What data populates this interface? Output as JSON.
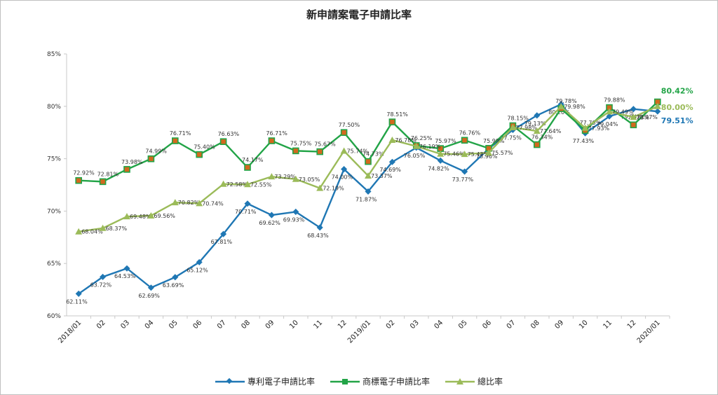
{
  "chart_data": {
    "type": "line",
    "title": "新申請案電子申請比率",
    "categories": [
      "2018/01",
      "02",
      "03",
      "04",
      "05",
      "06",
      "07",
      "08",
      "09",
      "10",
      "11",
      "12",
      "2019/01",
      "02",
      "03",
      "04",
      "05",
      "06",
      "07",
      "08",
      "09",
      "10",
      "11",
      "12",
      "2020/01"
    ],
    "ylim": [
      60,
      85
    ],
    "yticks": [
      "60%",
      "65%",
      "70%",
      "75%",
      "80%",
      "85%"
    ],
    "series": [
      {
        "name": "專利電子申請比率",
        "color": "#1f77b4",
        "marker": "diamond",
        "values": [
          62.11,
          63.72,
          64.53,
          62.69,
          63.69,
          65.12,
          67.81,
          70.71,
          69.62,
          69.93,
          68.43,
          74.0,
          71.87,
          74.69,
          76.05,
          74.82,
          73.77,
          75.96,
          77.75,
          79.13,
          80.2,
          77.43,
          79.04,
          79.74,
          79.51
        ],
        "labels": [
          "62.11%",
          "63.72%",
          "64.53%",
          "62.69%",
          "63.69%",
          "65.12%",
          "67.81%",
          "70.71%",
          "69.62%",
          "69.93%",
          "68.43%",
          "74.00%",
          "71.87%",
          "74.69%",
          "76.05%",
          "74.82%",
          "73.77%",
          "75.96%",
          "77.75%",
          "79.13%",
          "80.20%",
          "77.43%",
          "79.04%",
          "79.74%",
          "79.51%"
        ]
      },
      {
        "name": "商標電子申請比率",
        "color": "#22a447",
        "marker": "square",
        "values": [
          72.92,
          72.81,
          73.98,
          74.99,
          76.71,
          75.4,
          76.63,
          74.17,
          76.71,
          75.75,
          75.67,
          77.5,
          74.73,
          78.51,
          76.25,
          75.97,
          76.76,
          75.99,
          78.15,
          76.34,
          79.78,
          77.7,
          79.88,
          78.23,
          80.42
        ],
        "labels": [
          "72.92%",
          "72.81%",
          "73.98%",
          "74.99%",
          "76.71%",
          "75.40%",
          "76.63%",
          "74.17%",
          "76.71%",
          "75.75%",
          "75.67%",
          "77.50%",
          "74.73%",
          "78.51%",
          "76.25%",
          "75.97%",
          "76.76%",
          "75.99%",
          "78.15%",
          "76.34%",
          "79.78%",
          "77.70%",
          "79.88%",
          "78.23%",
          "80.42%"
        ]
      },
      {
        "name": "總比率",
        "color": "#9bbb59",
        "marker": "triangle",
        "values": [
          68.04,
          68.37,
          69.48,
          69.56,
          70.82,
          70.74,
          72.58,
          72.55,
          73.29,
          73.05,
          72.19,
          75.74,
          73.37,
          76.78,
          76.19,
          75.46,
          75.43,
          75.57,
          77.98,
          77.64,
          79.98,
          77.93,
          79.49,
          78.97,
          80.0
        ],
        "labels": [
          "68.04%",
          "68.37%",
          "69.48%",
          "69.56%",
          "70.82%",
          "70.74%",
          "72.58%",
          "72.55%",
          "73.29%",
          "73.05%",
          "72.19%",
          "75.74%",
          "73.37%",
          "76.78%",
          "76.19%",
          "75.46%",
          "75.43%",
          "75.57%",
          "77.98%",
          "77.64%",
          "79.98%",
          "77.93%",
          "79.49%",
          "78.97%",
          "80.00%"
        ]
      }
    ],
    "grid": false,
    "legend": "bottom"
  }
}
